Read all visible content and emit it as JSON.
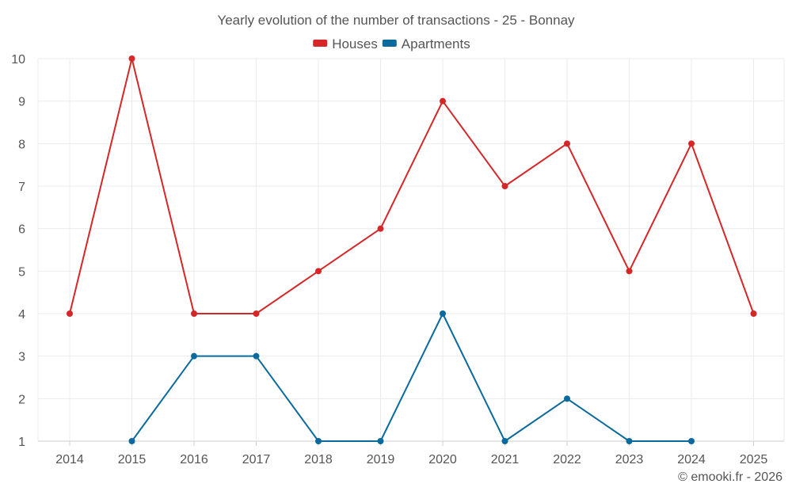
{
  "chart_data": {
    "type": "line",
    "title": "Yearly evolution of the number of transactions - 25 - Bonnay",
    "categories": [
      "2014",
      "2015",
      "2016",
      "2017",
      "2018",
      "2019",
      "2020",
      "2021",
      "2022",
      "2023",
      "2024",
      "2025"
    ],
    "ylim": [
      1,
      10
    ],
    "yticks": [
      1,
      2,
      3,
      4,
      5,
      6,
      7,
      8,
      9,
      10
    ],
    "grid": true,
    "legend_position": "top-center",
    "series": [
      {
        "name": "Houses",
        "color": "#d62728",
        "values": [
          4,
          10,
          4,
          4,
          5,
          6,
          9,
          7,
          8,
          5,
          8,
          4
        ]
      },
      {
        "name": "Apartments",
        "color": "#0a6a9e",
        "values": [
          null,
          1,
          3,
          3,
          1,
          1,
          4,
          1,
          2,
          1,
          1,
          null
        ]
      }
    ]
  },
  "credit": "© emooki.fr - 2026"
}
